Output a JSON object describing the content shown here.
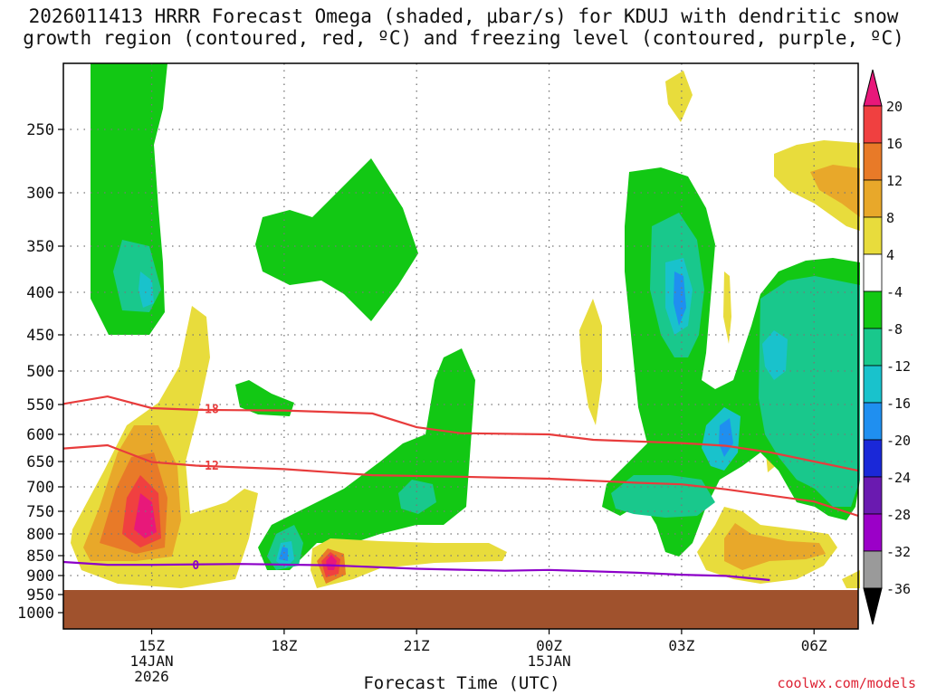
{
  "title": {
    "line1": "2026011413 HRRR Forecast Omega (shaded, μbar/s) for KDUJ with dendritic snow",
    "line2": "growth region (contoured, red, ºC) and freezing level (contoured, purple, ºC)"
  },
  "watermark": "coolwx.com/models",
  "chart_data": {
    "type": "time-height cross-section",
    "title": "2026011413 HRRR Forecast Omega (shaded, μbar/s) for KDUJ with dendritic snow growth region (contoured, red, ºC) and freezing level (contoured, purple, ºC)",
    "xlabel": "Forecast Time (UTC)",
    "ylabel": "",
    "x_ticks": [
      {
        "hour": 15,
        "label": "15Z",
        "sub1": "14JAN",
        "sub2": "2026"
      },
      {
        "hour": 18,
        "label": "18Z",
        "sub1": "",
        "sub2": ""
      },
      {
        "hour": 21,
        "label": "21Z",
        "sub1": "",
        "sub2": ""
      },
      {
        "hour": 24,
        "label": "00Z",
        "sub1": "15JAN",
        "sub2": ""
      },
      {
        "hour": 27,
        "label": "03Z",
        "sub1": "",
        "sub2": ""
      },
      {
        "hour": 30,
        "label": "06Z",
        "sub1": "",
        "sub2": ""
      }
    ],
    "x_range_hours": [
      13,
      31
    ],
    "y_axis": "pressure (hPa), top 200 to bottom 1050",
    "y_ticks": [
      250,
      300,
      350,
      400,
      450,
      500,
      550,
      600,
      650,
      700,
      750,
      800,
      850,
      900,
      950,
      1000
    ],
    "colorbar": {
      "levels": [
        -36,
        -32,
        -28,
        -24,
        -20,
        -16,
        -12,
        -8,
        -4,
        4,
        8,
        12,
        16,
        20
      ],
      "colors": [
        "#9a9a9a",
        "#9b00c8",
        "#6a1ab0",
        "#1a28d8",
        "#1f8ff0",
        "#19c2cc",
        "#19c88c",
        "#12c814",
        "#ffffff",
        "#e8dc3c",
        "#e8a82a",
        "#e87a28",
        "#f04040",
        "#e8187a"
      ]
    },
    "red_contours": [
      {
        "label": "-18",
        "points": [
          [
            13,
            549
          ],
          [
            14,
            538
          ],
          [
            15,
            556
          ],
          [
            16,
            559
          ],
          [
            18,
            560
          ],
          [
            20,
            565
          ],
          [
            21,
            588
          ],
          [
            22,
            598
          ],
          [
            24,
            600
          ],
          [
            25,
            610
          ],
          [
            27,
            616
          ],
          [
            28,
            621
          ],
          [
            29,
            633
          ],
          [
            31,
            668
          ]
        ]
      },
      {
        "label": "-12",
        "points": [
          [
            13,
            626
          ],
          [
            14,
            620
          ],
          [
            15,
            651
          ],
          [
            16,
            658
          ],
          [
            18,
            665
          ],
          [
            20,
            677
          ],
          [
            22,
            680
          ],
          [
            24,
            684
          ],
          [
            26,
            692
          ],
          [
            27,
            695
          ],
          [
            28,
            705
          ],
          [
            30,
            730
          ],
          [
            31,
            760
          ]
        ]
      }
    ],
    "purple_contour": {
      "label": "0",
      "points": [
        [
          13,
          866
        ],
        [
          14,
          873
        ],
        [
          15,
          873
        ],
        [
          17,
          871
        ],
        [
          19,
          874
        ],
        [
          21,
          883
        ],
        [
          23,
          888
        ],
        [
          24,
          886
        ],
        [
          26,
          893
        ],
        [
          27,
          898
        ],
        [
          28,
          901
        ],
        [
          29,
          912
        ]
      ]
    },
    "ground_below_hPa": 940,
    "colors": {
      "red_line": "#e83c3c",
      "purple_line": "#8c00c8",
      "ground": "#a0522d"
    }
  }
}
